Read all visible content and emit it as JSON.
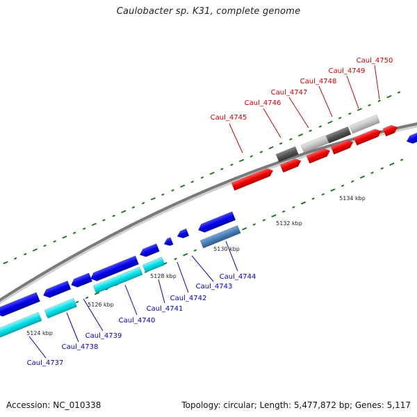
{
  "title": "Caulobacter sp. K31, complete genome",
  "footer": {
    "accession": "Accession: NC_010338",
    "summary": "Topology: circular; Length: 5,477,872 bp; Genes: 5,117"
  },
  "colors": {
    "backbone": "#8a8a8a",
    "tick": "#1a7a1a",
    "forward_gene": "#e00000",
    "reverse_gene": "#0000dd",
    "forward_label": "#cc0000",
    "reverse_label": "#0000cc",
    "cds_cyan": "#00d8e0",
    "cds_steel": "#4a7fb5",
    "cds_dark_gray": "#555555",
    "cds_light_gray": "#bbbbbb"
  },
  "scale_labels": [
    "5124 kbp",
    "5126 kbp",
    "5128 kbp",
    "5130 kbp",
    "5132 kbp",
    "5134 kbp"
  ],
  "forward_genes": [
    "Caul_4745",
    "Caul_4746",
    "Caul_4747",
    "Caul_4748",
    "Caul_4749",
    "Caul_4750"
  ],
  "reverse_genes": [
    "Caul_4737",
    "Caul_4738",
    "Caul_4739",
    "Caul_4740",
    "Caul_4741",
    "Caul_4742",
    "Caul_4743",
    "Caul_4744"
  ]
}
